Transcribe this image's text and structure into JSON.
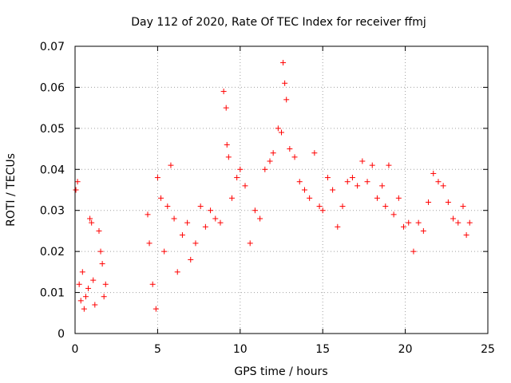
{
  "chart_data": {
    "type": "scatter",
    "title": "Day 112 of 2020, Rate Of TEC Index for receiver ffmj",
    "xlabel": "GPS time / hours",
    "ylabel": "ROTI / TECUs",
    "xlim": [
      0,
      25
    ],
    "ylim": [
      0,
      0.07
    ],
    "xticks": [
      0,
      5,
      10,
      15,
      20,
      25
    ],
    "xtick_labels": [
      "0",
      "5",
      "10",
      "15",
      "20",
      "25"
    ],
    "yticks": [
      0,
      0.01,
      0.02,
      0.03,
      0.04,
      0.05,
      0.06,
      0.07
    ],
    "ytick_labels": [
      "0",
      "0.01",
      "0.02",
      "0.03",
      "0.04",
      "0.05",
      "0.06",
      "0.07"
    ],
    "grid": true,
    "marker": "+",
    "color": "#ff0000",
    "series": [
      {
        "name": "ROTI",
        "x": [
          0.05,
          0.15,
          0.25,
          0.35,
          0.45,
          0.55,
          0.65,
          0.8,
          0.9,
          1.0,
          1.1,
          1.2,
          1.45,
          1.55,
          1.65,
          1.75,
          1.85,
          4.4,
          4.5,
          4.7,
          4.9,
          5.0,
          5.2,
          5.4,
          5.6,
          5.8,
          6.0,
          6.2,
          6.5,
          6.8,
          7.0,
          7.3,
          7.6,
          7.9,
          8.2,
          8.5,
          8.8,
          9.0,
          9.15,
          9.2,
          9.3,
          9.5,
          9.8,
          10.0,
          10.3,
          10.6,
          10.9,
          11.2,
          11.5,
          11.8,
          12.0,
          12.3,
          12.5,
          12.6,
          12.7,
          12.8,
          13.0,
          13.3,
          13.6,
          13.9,
          14.2,
          14.5,
          14.8,
          15.0,
          15.3,
          15.6,
          15.9,
          16.2,
          16.5,
          16.8,
          17.1,
          17.4,
          17.7,
          18.0,
          18.3,
          18.6,
          18.8,
          19.0,
          19.3,
          19.6,
          19.9,
          20.2,
          20.5,
          20.8,
          21.1,
          21.4,
          21.7,
          22.0,
          22.3,
          22.6,
          22.9,
          23.2,
          23.5,
          23.7,
          23.9
        ],
        "y": [
          0.035,
          0.037,
          0.012,
          0.008,
          0.015,
          0.006,
          0.009,
          0.011,
          0.028,
          0.027,
          0.013,
          0.007,
          0.025,
          0.02,
          0.017,
          0.009,
          0.012,
          0.029,
          0.022,
          0.012,
          0.006,
          0.038,
          0.033,
          0.02,
          0.031,
          0.041,
          0.028,
          0.015,
          0.024,
          0.027,
          0.018,
          0.022,
          0.031,
          0.026,
          0.03,
          0.028,
          0.027,
          0.059,
          0.055,
          0.046,
          0.043,
          0.033,
          0.038,
          0.04,
          0.036,
          0.022,
          0.03,
          0.028,
          0.04,
          0.042,
          0.044,
          0.05,
          0.049,
          0.066,
          0.061,
          0.057,
          0.045,
          0.043,
          0.037,
          0.035,
          0.033,
          0.044,
          0.031,
          0.03,
          0.038,
          0.035,
          0.026,
          0.031,
          0.037,
          0.038,
          0.036,
          0.042,
          0.037,
          0.041,
          0.033,
          0.036,
          0.031,
          0.041,
          0.029,
          0.033,
          0.026,
          0.027,
          0.02,
          0.027,
          0.025,
          0.032,
          0.039,
          0.037,
          0.036,
          0.032,
          0.028,
          0.027,
          0.031,
          0.024,
          0.027
        ]
      }
    ]
  }
}
